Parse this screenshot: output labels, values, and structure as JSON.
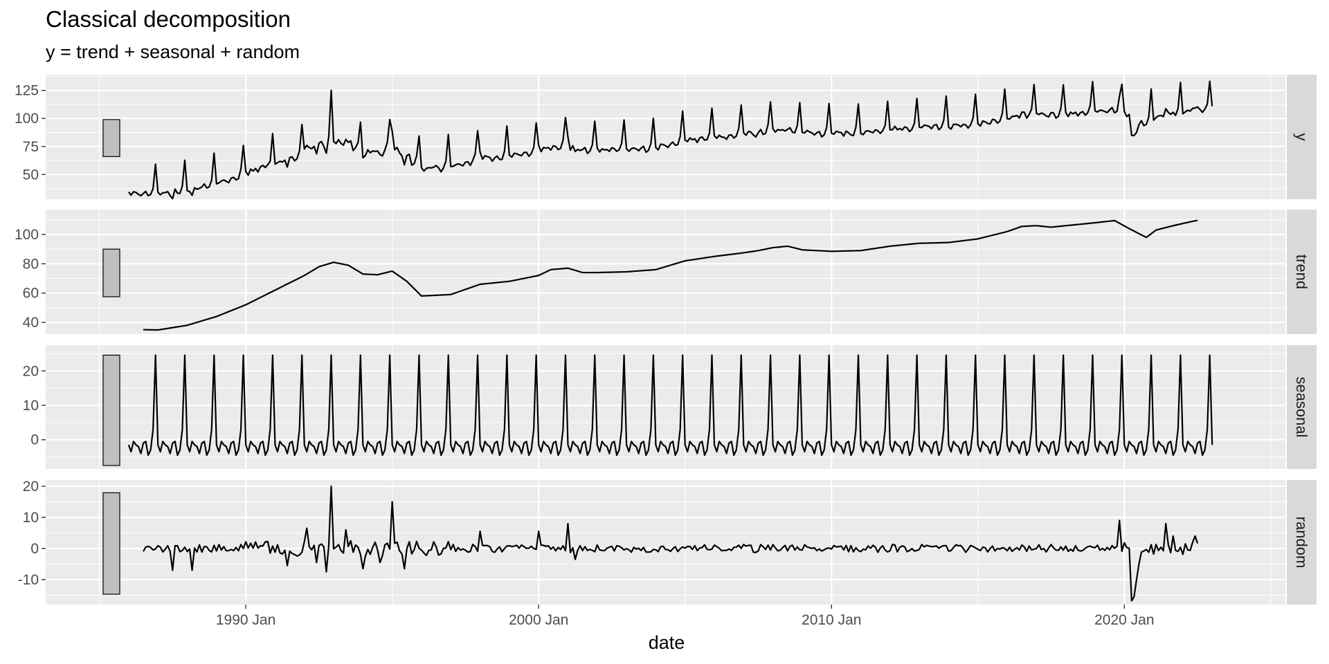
{
  "chart_data": {
    "type": "line",
    "title": "Classical decomposition",
    "subtitle": "y = trend + seasonal + random",
    "xlabel": "date",
    "x_range": [
      "1983-03",
      "2025-07"
    ],
    "x_ticks": [
      {
        "date": "1990-01",
        "label": "1990 Jan"
      },
      {
        "date": "2000-01",
        "label": "2000 Jan"
      },
      {
        "date": "2010-01",
        "label": "2010 Jan"
      },
      {
        "date": "2020-01",
        "label": "2020 Jan"
      }
    ],
    "series_start": "1986-01",
    "seasonal_pattern": [
      -1.5,
      -3.5,
      -0.5,
      -1.5,
      -2.0,
      -4.0,
      -1.0,
      -0.5,
      -4.5,
      -3.0,
      3.0,
      24.6
    ],
    "colors": {
      "panel": "#ebebeb",
      "strip": "#d9d9d9",
      "grid": "#ffffff",
      "line": "#000000",
      "scale_bar": "#bfbfbf"
    },
    "grid": true,
    "panels": [
      {
        "name": "y",
        "label": "y",
        "ylim": [
          28,
          139
        ],
        "yticks": [
          50,
          75,
          100,
          125
        ],
        "scale_bar": [
          66,
          99
        ],
        "values": []
      },
      {
        "name": "trend",
        "label": "trend",
        "ylim": [
          32,
          117
        ],
        "yticks": [
          40,
          60,
          80,
          100
        ],
        "scale_bar": [
          57.5,
          90
        ],
        "keypoints": [
          [
            "1986-07",
            35
          ],
          [
            "1987-01",
            34.8
          ],
          [
            "1988-01",
            38
          ],
          [
            "1989-01",
            44
          ],
          [
            "1990-01",
            52
          ],
          [
            "1991-01",
            62
          ],
          [
            "1992-01",
            72
          ],
          [
            "1992-07",
            78
          ],
          [
            "1993-01",
            81
          ],
          [
            "1993-07",
            79
          ],
          [
            "1994-01",
            73
          ],
          [
            "1994-07",
            72.5
          ],
          [
            "1995-01",
            75
          ],
          [
            "1995-07",
            68
          ],
          [
            "1996-01",
            58
          ],
          [
            "1997-01",
            59
          ],
          [
            "1998-01",
            66
          ],
          [
            "1999-01",
            68
          ],
          [
            "2000-01",
            72
          ],
          [
            "2000-06",
            76
          ],
          [
            "2001-01",
            77
          ],
          [
            "2001-07",
            74
          ],
          [
            "2002-01",
            74
          ],
          [
            "2003-01",
            74.5
          ],
          [
            "2004-01",
            76
          ],
          [
            "2005-01",
            82
          ],
          [
            "2006-01",
            85
          ],
          [
            "2007-01",
            87.5
          ],
          [
            "2007-07",
            89
          ],
          [
            "2008-01",
            91
          ],
          [
            "2008-07",
            92
          ],
          [
            "2009-01",
            89.5
          ],
          [
            "2010-01",
            88.5
          ],
          [
            "2011-01",
            89
          ],
          [
            "2012-01",
            92
          ],
          [
            "2013-01",
            94
          ],
          [
            "2014-01",
            94.5
          ],
          [
            "2015-01",
            97
          ],
          [
            "2016-01",
            102
          ],
          [
            "2016-07",
            105.5
          ],
          [
            "2017-01",
            106
          ],
          [
            "2017-07",
            105
          ],
          [
            "2018-01",
            106
          ],
          [
            "2019-01",
            108
          ],
          [
            "2019-09",
            109.5
          ],
          [
            "2020-03",
            104
          ],
          [
            "2020-10",
            98
          ],
          [
            "2021-02",
            103
          ],
          [
            "2021-09",
            106
          ],
          [
            "2022-05",
            109
          ],
          [
            "2022-10",
            110.5
          ]
        ],
        "values": []
      },
      {
        "name": "seasonal",
        "label": "seasonal",
        "ylim": [
          -8.5,
          27.5
        ],
        "yticks": [
          0,
          10,
          20
        ],
        "scale_bar": [
          -7.5,
          24.6
        ],
        "values": []
      },
      {
        "name": "random",
        "label": "random",
        "ylim": [
          -18,
          22
        ],
        "yticks": [
          -10,
          0,
          10,
          20
        ],
        "scale_bar": [
          -14.7,
          17.9
        ],
        "values": []
      }
    ]
  }
}
